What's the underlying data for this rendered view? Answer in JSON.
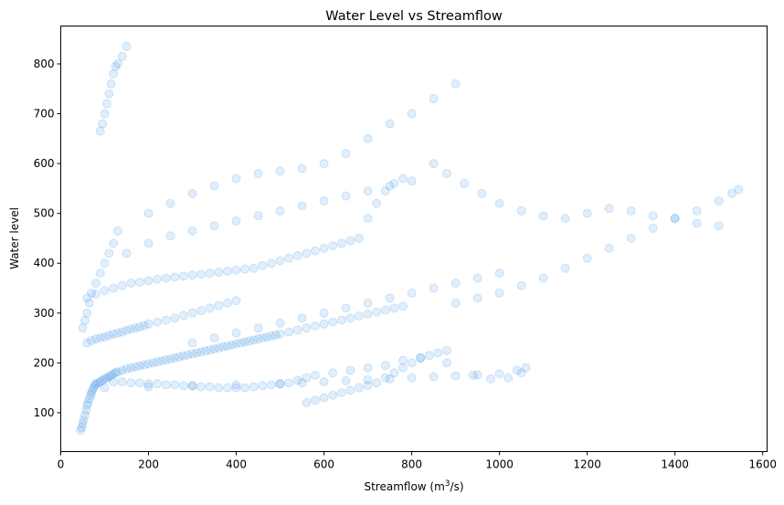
{
  "chart_data": {
    "type": "scatter",
    "title": "Water Level vs Streamflow",
    "xlabel_main": "Streamflow (m",
    "xlabel_sup": "3",
    "xlabel_tail": "/s)",
    "ylabel": "Water level",
    "xlim": [
      0,
      1610
    ],
    "ylim": [
      22,
      876
    ],
    "xticks": [
      0,
      200,
      400,
      600,
      800,
      1000,
      1200,
      1400,
      1600
    ],
    "yticks": [
      100,
      200,
      300,
      400,
      500,
      600,
      700,
      800
    ],
    "grid": false,
    "point_color": "#1a7fe0",
    "point_opacity": 0.13,
    "series": [
      {
        "x": [
          45,
          48,
          50,
          52,
          55,
          58,
          60,
          62,
          65,
          68,
          70,
          72,
          75,
          78,
          80,
          85,
          90,
          95,
          100,
          105,
          110,
          115,
          120,
          125,
          130,
          140,
          150,
          160,
          170,
          180,
          190,
          200,
          210,
          220,
          230,
          240,
          250,
          260,
          270,
          280,
          290,
          300,
          310,
          320,
          330,
          340,
          350,
          360,
          370,
          380,
          390,
          400,
          410,
          420,
          430,
          440,
          450,
          460,
          470,
          480,
          490,
          500,
          520,
          540,
          560,
          580,
          600,
          620,
          640,
          660,
          680,
          700,
          720,
          740,
          760,
          780
        ],
        "y": [
          65,
          70,
          78,
          85,
          95,
          105,
          115,
          120,
          128,
          135,
          140,
          145,
          150,
          155,
          158,
          160,
          162,
          165,
          168,
          170,
          172,
          175,
          178,
          180,
          182,
          185,
          188,
          190,
          192,
          194,
          196,
          198,
          200,
          202,
          204,
          206,
          208,
          210,
          212,
          214,
          216,
          218,
          220,
          222,
          224,
          226,
          228,
          230,
          232,
          234,
          236,
          238,
          240,
          242,
          244,
          246,
          248,
          250,
          252,
          254,
          256,
          258,
          262,
          266,
          270,
          274,
          278,
          282,
          286,
          290,
          294,
          298,
          302,
          306,
          310,
          314
        ]
      },
      {
        "x": [
          60,
          70,
          80,
          90,
          100,
          110,
          120,
          130,
          140,
          150,
          160,
          170,
          180,
          190,
          200,
          220,
          240,
          260,
          280,
          300,
          320,
          340,
          360,
          380,
          400
        ],
        "y": [
          240,
          245,
          248,
          250,
          252,
          255,
          258,
          260,
          262,
          265,
          268,
          270,
          272,
          275,
          278,
          282,
          286,
          290,
          295,
          300,
          305,
          310,
          315,
          320,
          325
        ]
      },
      {
        "x": [
          60,
          80,
          100,
          120,
          140,
          160,
          180,
          200,
          220,
          240,
          260,
          280,
          300,
          320,
          340,
          360,
          380,
          400,
          420,
          440,
          460,
          480,
          500,
          520,
          540,
          560,
          580,
          600,
          620,
          640,
          660,
          680,
          700,
          720,
          740,
          760,
          780
        ],
        "y": [
          330,
          338,
          345,
          350,
          355,
          360,
          362,
          365,
          368,
          370,
          372,
          374,
          376,
          378,
          380,
          382,
          384,
          386,
          388,
          390,
          395,
          400,
          405,
          410,
          415,
          420,
          425,
          430,
          435,
          440,
          445,
          450,
          490,
          520,
          545,
          560,
          570
        ]
      },
      {
        "x": [
          100,
          200,
          300,
          400,
          500,
          550,
          600,
          650,
          700,
          750,
          800,
          850,
          900,
          950,
          1000,
          1050,
          1060,
          1040,
          1020,
          980,
          940,
          880,
          820,
          780,
          740,
          700,
          660,
          620,
          580,
          560,
          540,
          520,
          500,
          480,
          460,
          440,
          420,
          400,
          380,
          360,
          340,
          320,
          300,
          280,
          260,
          240,
          220,
          200,
          180,
          160,
          140,
          120
        ],
        "y": [
          150,
          152,
          154,
          156,
          158,
          160,
          162,
          164,
          166,
          168,
          170,
          172,
          174,
          176,
          178,
          180,
          190,
          185,
          170,
          168,
          175,
          200,
          210,
          205,
          195,
          190,
          185,
          180,
          175,
          170,
          165,
          160,
          158,
          156,
          154,
          152,
          150,
          150,
          150,
          150,
          152,
          152,
          154,
          154,
          156,
          156,
          158,
          158,
          160,
          160,
          162,
          162
        ]
      },
      {
        "x": [
          90,
          95,
          100,
          105,
          110,
          115,
          120,
          125,
          130,
          140,
          150
        ],
        "y": [
          665,
          680,
          700,
          720,
          740,
          760,
          780,
          795,
          800,
          815,
          835
        ]
      },
      {
        "x": [
          900,
          950,
          1000,
          1050,
          1100,
          1150,
          1200,
          1250,
          1300,
          1350,
          1400,
          1450,
          1500,
          1530,
          1545
        ],
        "y": [
          320,
          330,
          340,
          355,
          370,
          390,
          410,
          430,
          450,
          470,
          490,
          505,
          525,
          540,
          548
        ]
      },
      {
        "x": [
          850,
          880,
          920,
          960,
          1000,
          1050,
          1100,
          1150,
          1200,
          1250,
          1300,
          1350,
          1400,
          1450,
          1500
        ],
        "y": [
          600,
          580,
          560,
          540,
          520,
          505,
          495,
          490,
          500,
          510,
          505,
          495,
          490,
          480,
          475
        ]
      },
      {
        "x": [
          200,
          250,
          300,
          350,
          400,
          450,
          500,
          550,
          600,
          650,
          700,
          750,
          800,
          850,
          900
        ],
        "y": [
          500,
          520,
          540,
          555,
          570,
          580,
          585,
          590,
          600,
          620,
          650,
          680,
          700,
          730,
          760
        ]
      },
      {
        "x": [
          150,
          200,
          250,
          300,
          350,
          400,
          450,
          500,
          550,
          600,
          650,
          700,
          750,
          800
        ],
        "y": [
          420,
          440,
          455,
          465,
          475,
          485,
          495,
          505,
          515,
          525,
          535,
          545,
          555,
          565
        ]
      },
      {
        "x": [
          300,
          350,
          400,
          450,
          500,
          550,
          600,
          650,
          700,
          750,
          800,
          850,
          900,
          950,
          1000
        ],
        "y": [
          240,
          250,
          260,
          270,
          280,
          290,
          300,
          310,
          320,
          330,
          340,
          350,
          360,
          370,
          380
        ]
      },
      {
        "x": [
          50,
          55,
          60,
          65,
          70,
          80,
          90,
          100,
          110,
          120,
          130
        ],
        "y": [
          270,
          285,
          300,
          320,
          340,
          360,
          380,
          400,
          420,
          440,
          465
        ]
      },
      {
        "x": [
          560,
          580,
          600,
          620,
          640,
          660,
          680,
          700,
          720,
          740,
          760,
          780,
          800,
          820,
          840,
          860,
          880
        ],
        "y": [
          120,
          125,
          130,
          135,
          140,
          145,
          150,
          155,
          160,
          170,
          180,
          190,
          200,
          210,
          215,
          220,
          225
        ]
      }
    ]
  }
}
